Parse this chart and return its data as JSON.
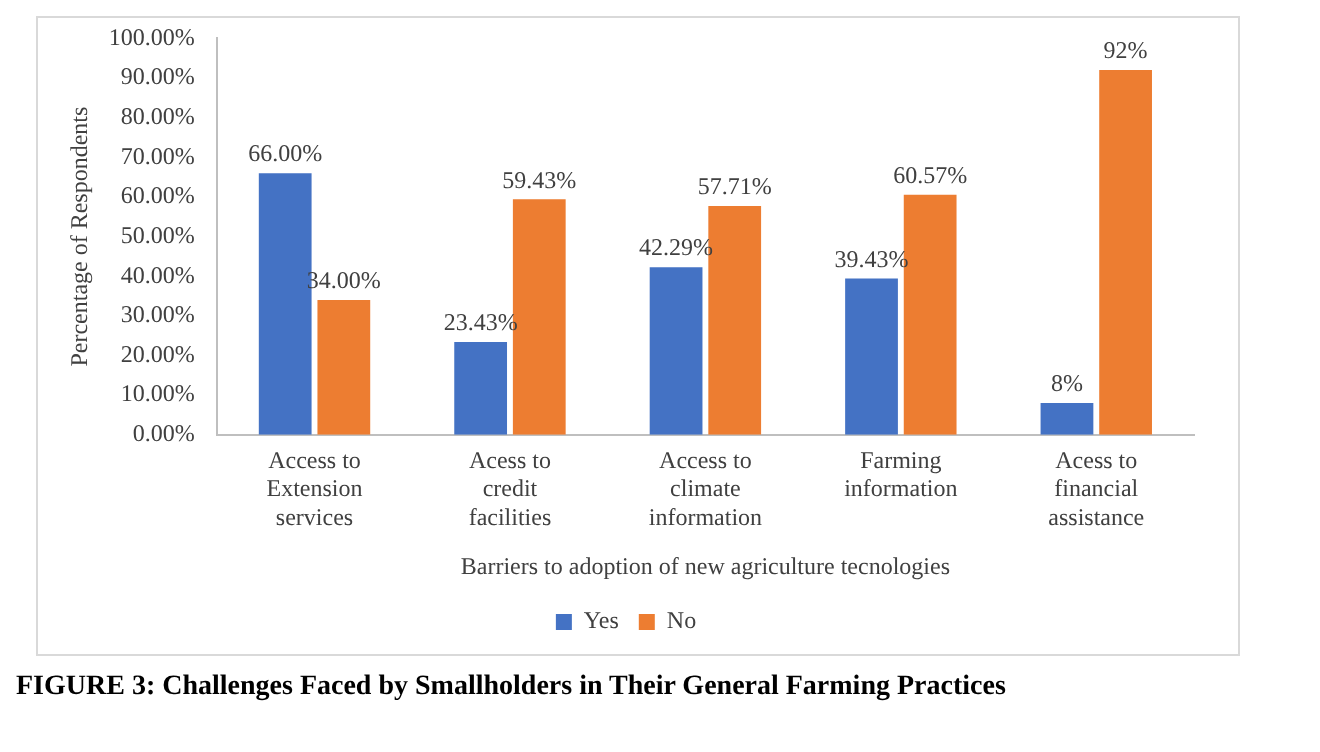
{
  "chart_data": {
    "type": "bar",
    "title": "FIGURE 3: Challenges Faced by Smallholders in Their General Farming Practices",
    "xlabel": "Barriers to adoption of new agriculture tecnologies",
    "ylabel": "Percentage of Respondents",
    "categories": [
      "Access to Extension services",
      "Acess to credit facilities",
      "Access to climate information",
      "Farming information",
      "Acess to financial assistance"
    ],
    "series": [
      {
        "name": "Yes",
        "color": "#4472c4",
        "values": [
          66,
          23.43,
          42.29,
          39.43,
          8
        ],
        "value_labels": [
          "66.00%",
          "23.43%",
          "42.29%",
          "39.43%",
          "8%"
        ]
      },
      {
        "name": "No",
        "color": "#ed7d31",
        "values": [
          34,
          59.43,
          57.71,
          60.57,
          92
        ],
        "value_labels": [
          "34.00%",
          "59.43%",
          "57.71%",
          "60.57%",
          "92%"
        ]
      }
    ],
    "ylim": [
      0,
      100
    ],
    "yticks": [
      {
        "value": 0,
        "label": "0.00%"
      },
      {
        "value": 10,
        "label": "10.00%"
      },
      {
        "value": 20,
        "label": "20.00%"
      },
      {
        "value": 30,
        "label": "30.00%"
      },
      {
        "value": 40,
        "label": "40.00%"
      },
      {
        "value": 50,
        "label": "50.00%"
      },
      {
        "value": 60,
        "label": "60.00%"
      },
      {
        "value": 70,
        "label": "70.00%"
      },
      {
        "value": 80,
        "label": "80.00%"
      },
      {
        "value": 90,
        "label": "90.00%"
      },
      {
        "value": 100,
        "label": "100.00%"
      }
    ],
    "grid": false,
    "legend": "bottom"
  }
}
